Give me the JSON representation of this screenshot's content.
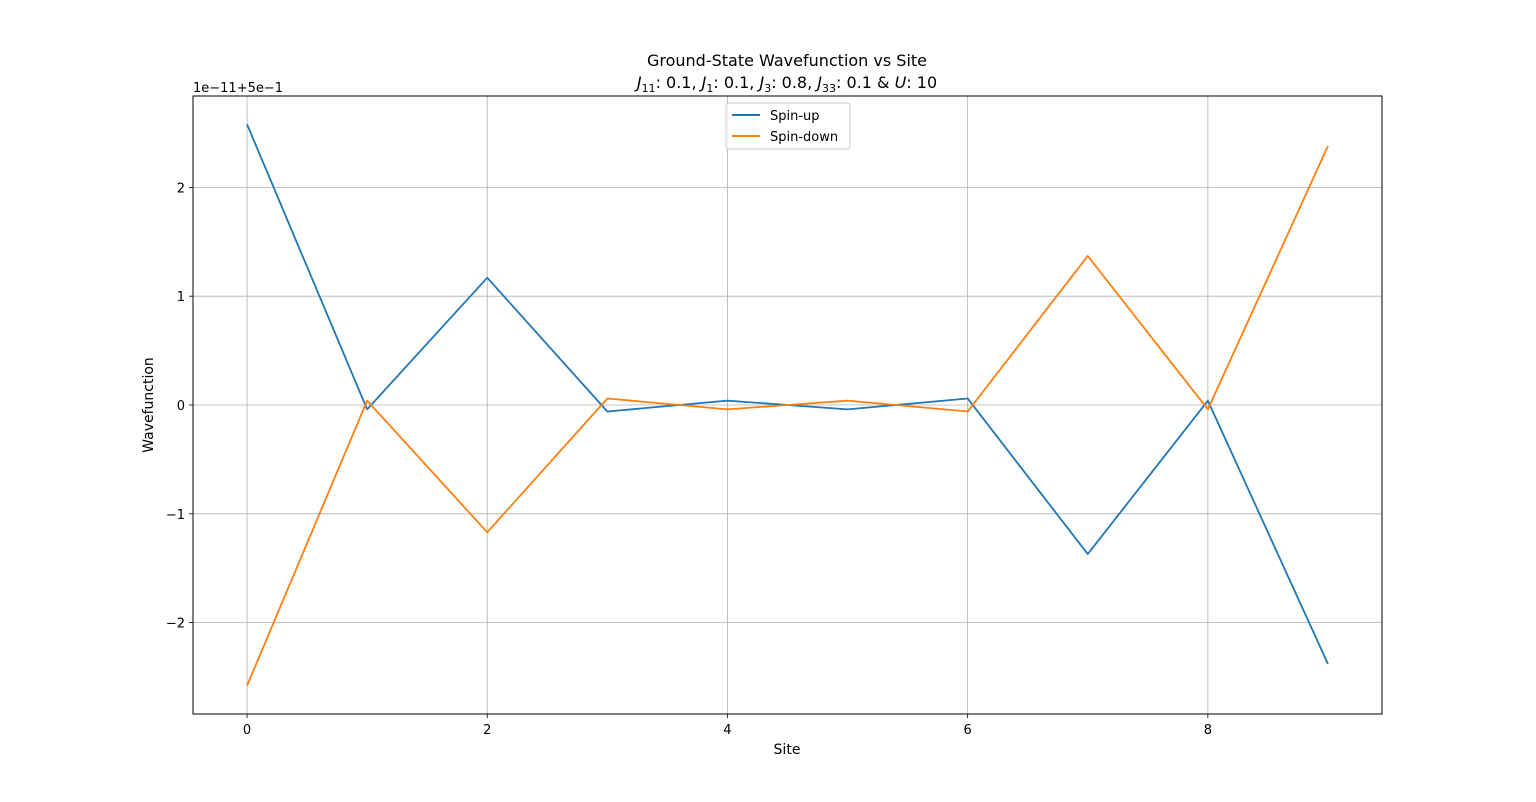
{
  "chart_data": {
    "type": "line",
    "title": "Ground-State Wavefunction vs Site",
    "subtitle": {
      "parts": [
        {
          "sym": "J",
          "sub": "11",
          "text": ": 0.1, "
        },
        {
          "sym": "J",
          "sub": "1",
          "text": ": 0.1, "
        },
        {
          "sym": "J",
          "sub": "3",
          "text": ": 0.8, "
        },
        {
          "sym": "J",
          "sub": "33",
          "text": ": 0.1 & "
        },
        {
          "sym": "U",
          "sub": "",
          "text": ": 10"
        }
      ]
    },
    "xlabel": "Site",
    "ylabel": "Wavefunction",
    "offset_label": "1e−11+5e−1",
    "x": [
      0,
      1,
      2,
      3,
      4,
      5,
      6,
      7,
      8,
      9
    ],
    "xlim": [
      -0.45,
      9.45
    ],
    "ylim": [
      -2.84,
      2.84
    ],
    "x_ticks": [
      0,
      2,
      4,
      6,
      8
    ],
    "x_tick_labels": [
      "0",
      "2",
      "4",
      "6",
      "8"
    ],
    "y_ticks": [
      -2,
      -1,
      0,
      1,
      2
    ],
    "y_tick_labels": [
      "−2",
      "−1",
      "0",
      "1",
      "2"
    ],
    "grid": true,
    "legend_position": "top-center",
    "series": [
      {
        "name": "Spin-up",
        "color": "#1f77b4",
        "values": [
          2.58,
          -0.04,
          1.17,
          -0.06,
          0.04,
          -0.04,
          0.06,
          -1.37,
          0.04,
          -2.38
        ]
      },
      {
        "name": "Spin-down",
        "color": "#ff7f0e",
        "values": [
          -2.58,
          0.04,
          -1.17,
          0.06,
          -0.04,
          0.04,
          -0.06,
          1.37,
          -0.04,
          2.38
        ]
      }
    ]
  }
}
